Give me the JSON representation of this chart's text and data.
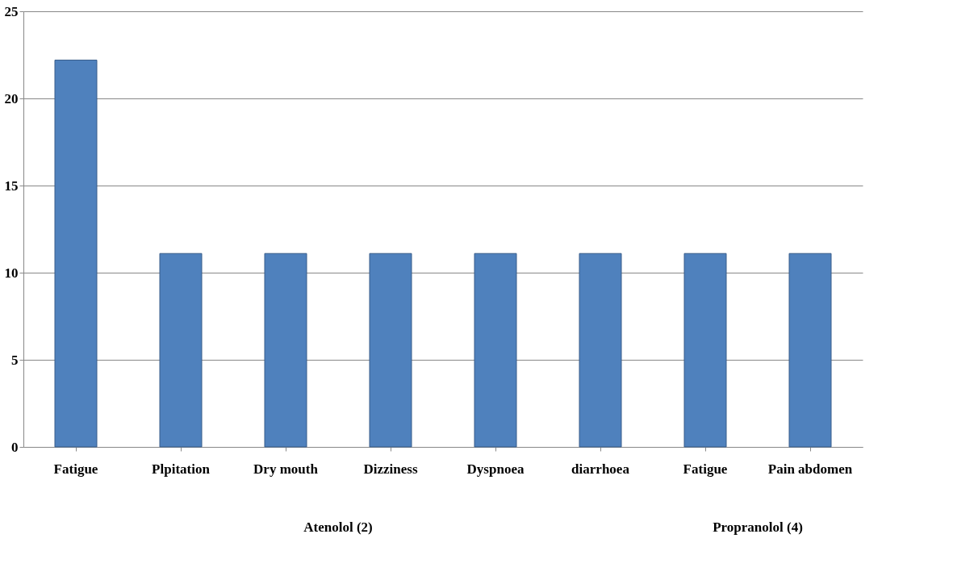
{
  "chart_data": {
    "type": "bar",
    "categories": [
      "Fatigue",
      "Plpitation",
      "Dry mouth",
      "Dizziness",
      "Dyspnoea",
      "diarrhoea",
      "Fatigue",
      "Pain abdomen"
    ],
    "values": [
      22.2,
      11.1,
      11.1,
      11.1,
      11.1,
      11.1,
      11.1,
      11.1
    ],
    "color": "#4f81bd",
    "ylim": [
      0,
      25
    ],
    "yticks": [
      0,
      5,
      10,
      15,
      20,
      25
    ],
    "grid": "y",
    "annotations": [
      "Atenolol (2)",
      "Propranolol (4)"
    ]
  }
}
